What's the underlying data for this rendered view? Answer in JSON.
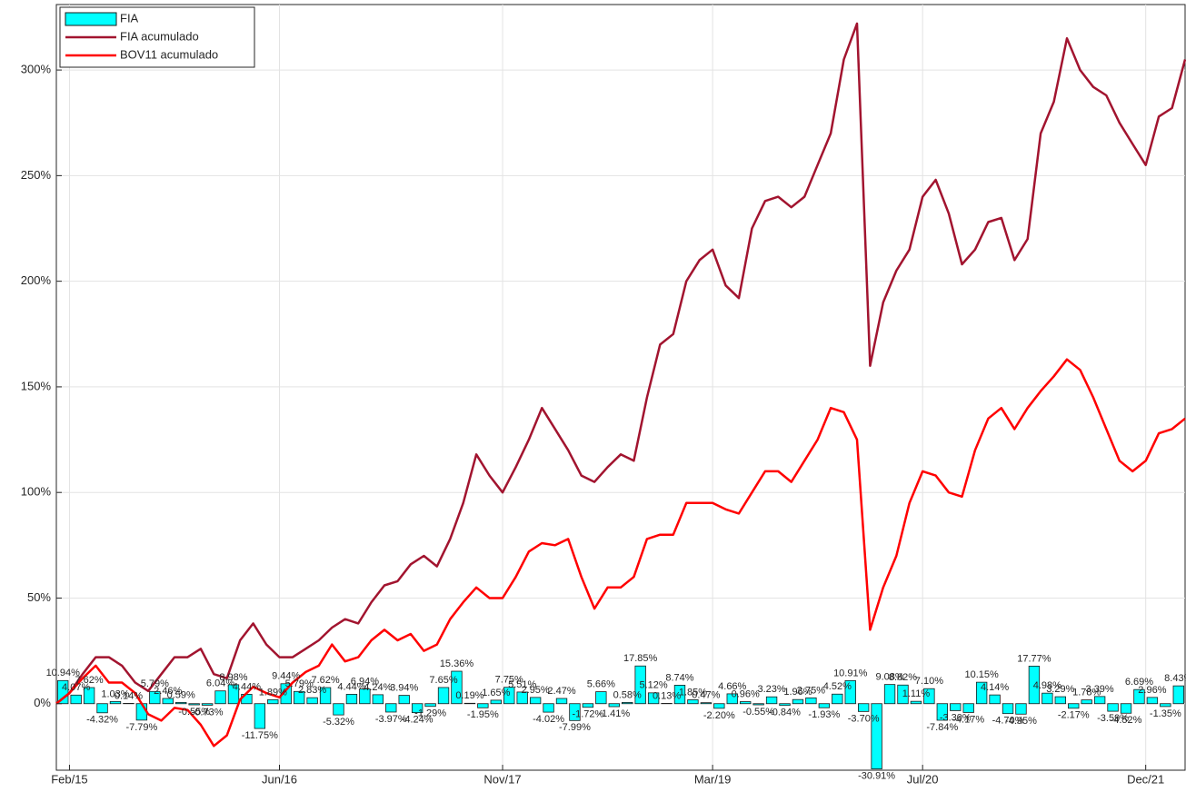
{
  "chart_data": {
    "type": "combo",
    "xlim": [
      "2015-01",
      "2022-03"
    ],
    "xticks": [
      {
        "value": "2015-02",
        "label": "Feb/15"
      },
      {
        "value": "2016-06",
        "label": "Jun/16"
      },
      {
        "value": "2017-11",
        "label": "Nov/17"
      },
      {
        "value": "2019-03",
        "label": "Mar/19"
      },
      {
        "value": "2020-07",
        "label": "Jul/20"
      },
      {
        "value": "2021-12",
        "label": "Dec/21"
      }
    ],
    "ylim": [
      -31.5,
      331
    ],
    "yticks": [
      {
        "value": 0,
        "label": "0%"
      },
      {
        "value": 50,
        "label": "50%"
      },
      {
        "value": 100,
        "label": "100%"
      },
      {
        "value": 150,
        "label": "150%"
      },
      {
        "value": 200,
        "label": "200%"
      },
      {
        "value": 250,
        "label": "250%"
      },
      {
        "value": 300,
        "label": "300%"
      }
    ],
    "grid": true,
    "legend": "upper-left",
    "series": [
      {
        "name": "FIA",
        "type": "bar",
        "color": "#00ffff",
        "x": [
          "2015-01",
          "2015-02",
          "2015-03",
          "2015-04",
          "2015-05",
          "2015-06",
          "2015-07",
          "2015-08",
          "2015-09",
          "2015-10",
          "2015-11",
          "2015-12",
          "2016-01",
          "2016-02",
          "2016-03",
          "2016-04",
          "2016-05",
          "2016-06",
          "2016-07",
          "2016-08",
          "2016-09",
          "2016-10",
          "2016-11",
          "2016-12",
          "2017-01",
          "2017-02",
          "2017-03",
          "2017-04",
          "2017-05",
          "2017-06",
          "2017-07",
          "2017-08",
          "2017-09",
          "2017-10",
          "2017-11",
          "2017-12",
          "2018-01",
          "2018-02",
          "2018-03",
          "2018-04",
          "2018-05",
          "2018-06",
          "2018-07",
          "2018-08",
          "2018-09",
          "2018-10",
          "2018-11",
          "2018-12",
          "2019-01",
          "2019-02",
          "2019-03",
          "2019-04",
          "2019-05",
          "2019-06",
          "2019-07",
          "2019-08",
          "2019-09",
          "2019-10",
          "2019-11",
          "2019-12",
          "2020-01",
          "2020-02",
          "2020-03",
          "2020-04",
          "2020-05",
          "2020-06",
          "2020-07",
          "2020-08",
          "2020-09",
          "2020-10",
          "2020-11",
          "2020-12",
          "2021-01",
          "2021-02",
          "2021-03",
          "2021-04",
          "2021-05",
          "2021-06",
          "2021-07",
          "2021-08",
          "2021-09",
          "2021-10",
          "2021-11",
          "2021-12",
          "2022-01",
          "2022-02"
        ],
        "values": [
          10.94,
          4.07,
          7.62,
          -4.32,
          1.03,
          0.14,
          -7.79,
          5.79,
          2.46,
          0.59,
          -0.55,
          -0.73,
          6.04,
          8.98,
          4.44,
          -11.75,
          1.89,
          9.44,
          5.79,
          2.83,
          7.62,
          -5.32,
          4.44,
          6.94,
          4.24,
          -3.97,
          3.94,
          -4.24,
          -1.29,
          7.65,
          15.36,
          0.19,
          -1.95,
          1.65,
          7.75,
          5.51,
          2.95,
          -4.02,
          2.47,
          -7.99,
          -1.72,
          5.66,
          -1.41,
          0.58,
          17.85,
          5.12,
          0.13,
          8.74,
          1.85,
          0.47,
          -2.2,
          4.66,
          0.96,
          -0.55,
          3.23,
          -0.84,
          1.96,
          2.75,
          -1.93,
          4.52,
          10.91,
          -3.7,
          -30.91,
          9.08,
          8.82,
          1.11,
          7.1,
          -7.84,
          -3.3,
          -4.17,
          10.15,
          4.14,
          -4.7,
          -4.95,
          17.77,
          4.98,
          3.29,
          -2.17,
          1.78,
          3.39,
          -3.59,
          -4.52,
          6.69,
          2.96,
          -1.35,
          8.43
        ],
        "value_labels": [
          "10.94%",
          "4.07%",
          "7.62%",
          "-4.32%",
          "1.03%",
          "0.14%",
          "-7.79%",
          "5.79%",
          "2.46%",
          "0.59%",
          "-0.55%",
          "-0.73%",
          "6.04%",
          "8.98%",
          "4.44%",
          "-11.75%",
          "1.89%",
          "9.44%",
          "5.79%",
          "2.83%",
          "7.62%",
          "-5.32%",
          "4.44%",
          "6.94%",
          "4.24%",
          "-3.97%",
          "3.94%",
          "-4.24%",
          "-1.29%",
          "7.65%",
          "15.36%",
          "0.19%",
          "-1.95%",
          "1.65%",
          "7.75%",
          "5.51%",
          "2.95%",
          "-4.02%",
          "2.47%",
          "-7.99%",
          "-1.72%",
          "5.66%",
          "-1.41%",
          "0.58%",
          "17.85%",
          "5.12%",
          "0.13%",
          "8.74%",
          "1.85%",
          "0.47%",
          "-2.20%",
          "4.66%",
          "0.96%",
          "-0.55%",
          "3.23%",
          "-0.84%",
          "1.96%",
          "2.75%",
          "-1.93%",
          "4.52%",
          "10.91%",
          "-3.70%",
          "-30.91%",
          "9.08%",
          "8.82%",
          "1.11%",
          "7.10%",
          "-7.84%",
          "-3.30%",
          "-4.17%",
          "10.15%",
          "4.14%",
          "-4.70%",
          "-4.95%",
          "17.77%",
          "4.98%",
          "3.29%",
          "-2.17%",
          "1.78%",
          "3.39%",
          "-3.59%",
          "-4.52%",
          "6.69%",
          "2.96%",
          "-1.35%",
          "8.43%"
        ]
      },
      {
        "name": "FIA acumulado",
        "type": "line",
        "color": "#a2142f",
        "x": [
          "2015-01",
          "2015-02",
          "2015-03",
          "2015-04",
          "2015-05",
          "2015-06",
          "2015-07",
          "2015-08",
          "2015-09",
          "2015-10",
          "2015-11",
          "2015-12",
          "2016-01",
          "2016-02",
          "2016-03",
          "2016-04",
          "2016-05",
          "2016-06",
          "2016-07",
          "2016-08",
          "2016-09",
          "2016-10",
          "2016-11",
          "2016-12",
          "2017-01",
          "2017-02",
          "2017-03",
          "2017-04",
          "2017-05",
          "2017-06",
          "2017-07",
          "2017-08",
          "2017-09",
          "2017-10",
          "2017-11",
          "2017-12",
          "2018-01",
          "2018-02",
          "2018-03",
          "2018-04",
          "2018-05",
          "2018-06",
          "2018-07",
          "2018-08",
          "2018-09",
          "2018-10",
          "2018-11",
          "2018-12",
          "2019-01",
          "2019-02",
          "2019-03",
          "2019-04",
          "2019-05",
          "2019-06",
          "2019-07",
          "2019-08",
          "2019-09",
          "2019-10",
          "2019-11",
          "2019-12",
          "2020-01",
          "2020-02",
          "2020-03",
          "2020-04",
          "2020-05",
          "2020-06",
          "2020-07",
          "2020-08",
          "2020-09",
          "2020-10",
          "2020-11",
          "2020-12",
          "2021-01",
          "2021-02",
          "2021-03",
          "2021-04",
          "2021-05",
          "2021-06",
          "2021-07",
          "2021-08",
          "2021-09",
          "2021-10",
          "2021-11",
          "2021-12",
          "2022-01",
          "2022-02",
          "2022-03"
        ],
        "values": [
          0,
          5,
          14,
          22,
          22,
          18,
          10,
          6,
          14,
          22,
          22,
          26,
          14,
          12,
          30,
          38,
          28,
          22,
          22,
          26,
          30,
          36,
          40,
          38,
          48,
          56,
          58,
          66,
          70,
          65,
          78,
          95,
          118,
          108,
          100,
          112,
          125,
          140,
          130,
          120,
          108,
          105,
          112,
          118,
          115,
          145,
          170,
          175,
          200,
          210,
          215,
          198,
          192,
          225,
          238,
          240,
          235,
          240,
          255,
          270,
          305,
          322,
          160,
          190,
          205,
          215,
          240,
          248,
          232,
          208,
          215,
          228,
          230,
          210,
          220,
          270,
          285,
          315,
          300,
          292,
          288,
          275,
          265,
          255,
          278,
          282,
          305
        ]
      },
      {
        "name": "BOV11 acumulado",
        "type": "line",
        "color": "#ff0000",
        "x": [
          "2015-01",
          "2015-02",
          "2015-03",
          "2015-04",
          "2015-05",
          "2015-06",
          "2015-07",
          "2015-08",
          "2015-09",
          "2015-10",
          "2015-11",
          "2015-12",
          "2016-01",
          "2016-02",
          "2016-03",
          "2016-04",
          "2016-05",
          "2016-06",
          "2016-07",
          "2016-08",
          "2016-09",
          "2016-10",
          "2016-11",
          "2016-12",
          "2017-01",
          "2017-02",
          "2017-03",
          "2017-04",
          "2017-05",
          "2017-06",
          "2017-07",
          "2017-08",
          "2017-09",
          "2017-10",
          "2017-11",
          "2017-12",
          "2018-01",
          "2018-02",
          "2018-03",
          "2018-04",
          "2018-05",
          "2018-06",
          "2018-07",
          "2018-08",
          "2018-09",
          "2018-10",
          "2018-11",
          "2018-12",
          "2019-01",
          "2019-02",
          "2019-03",
          "2019-04",
          "2019-05",
          "2019-06",
          "2019-07",
          "2019-08",
          "2019-09",
          "2019-10",
          "2019-11",
          "2019-12",
          "2020-01",
          "2020-02",
          "2020-03",
          "2020-04",
          "2020-05",
          "2020-06",
          "2020-07",
          "2020-08",
          "2020-09",
          "2020-10",
          "2020-11",
          "2020-12",
          "2021-01",
          "2021-02",
          "2021-03",
          "2021-04",
          "2021-05",
          "2021-06",
          "2021-07",
          "2021-08",
          "2021-09",
          "2021-10",
          "2021-11",
          "2021-12",
          "2022-01",
          "2022-02",
          "2022-03"
        ],
        "values": [
          0,
          5,
          12,
          18,
          10,
          10,
          5,
          -5,
          -8,
          -2,
          -3,
          -10,
          -20,
          -15,
          2,
          8,
          5,
          3,
          10,
          15,
          18,
          28,
          20,
          22,
          30,
          35,
          30,
          33,
          25,
          28,
          40,
          48,
          55,
          50,
          50,
          60,
          72,
          76,
          75,
          78,
          60,
          45,
          55,
          55,
          60,
          78,
          80,
          80,
          95,
          95,
          95,
          92,
          90,
          100,
          110,
          110,
          105,
          115,
          125,
          140,
          138,
          125,
          35,
          55,
          70,
          95,
          110,
          108,
          100,
          98,
          120,
          135,
          140,
          130,
          140,
          148,
          155,
          163,
          158,
          145,
          130,
          115,
          110,
          115,
          128,
          130,
          135
        ]
      }
    ]
  }
}
